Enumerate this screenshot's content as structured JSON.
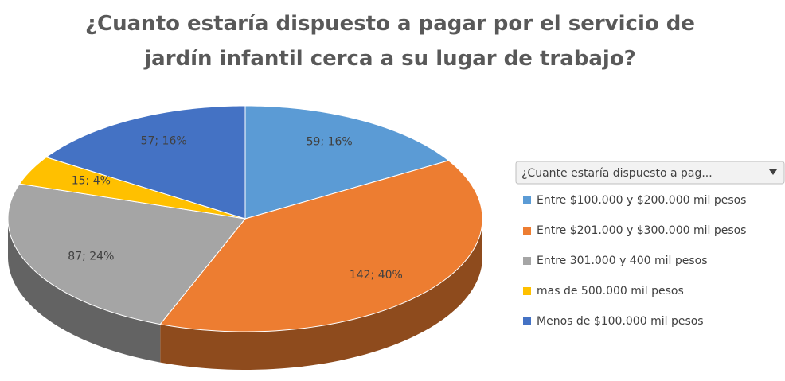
{
  "chart_data": {
    "type": "pie",
    "title": "¿Cuanto estaría dispuesto a pagar por el servicio de jardín infantil cerca a su lugar de trabajo?",
    "legend_title": "¿Cuante estaría dispuesto a pag...",
    "categories": [
      "Entre $100.000 y $200.000 mil pesos",
      "Entre $201.000 y $300.000 mil pesos",
      "Entre 301.000 y 400 mil pesos",
      "mas de 500.000 mil pesos",
      "Menos de $100.000 mil pesos"
    ],
    "values": [
      59,
      142,
      87,
      15,
      57
    ],
    "value_labels": [
      "59; 16%",
      "142; 40%",
      "87; 24%",
      "15; 4%",
      "57; 16%"
    ],
    "colors": [
      "#5b9bd5",
      "#ed7d31",
      "#a5a5a5",
      "#ffc000",
      "#4472c4"
    ],
    "legend": "right"
  }
}
